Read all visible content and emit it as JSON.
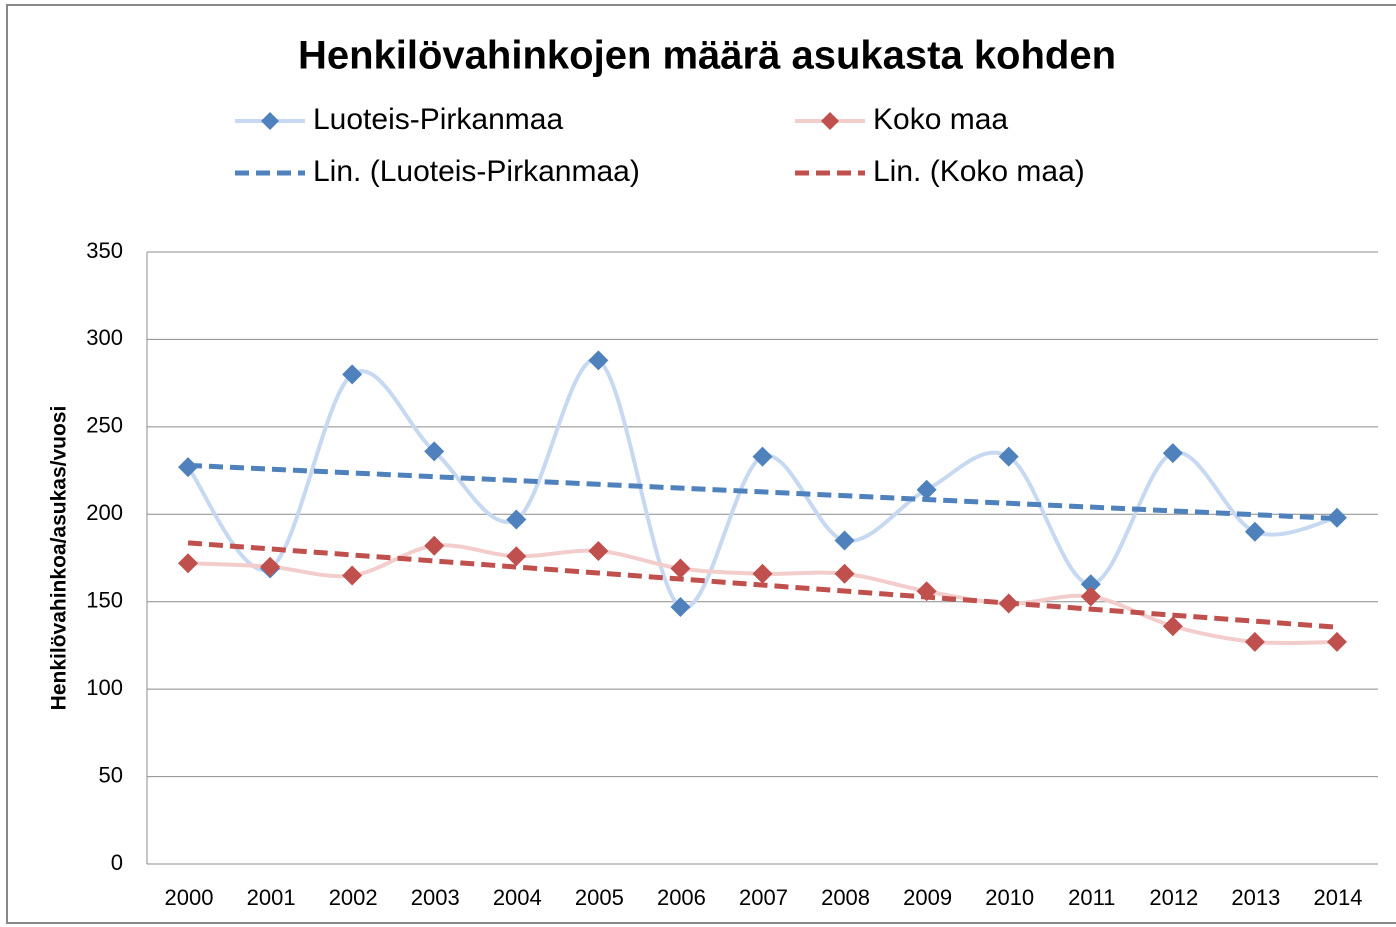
{
  "chart_data": {
    "type": "line",
    "title": "Henkilövahinkojen määrä asukasta kohden",
    "y_label": "Henkilövahinkoa/asukas/vuosi",
    "categories": [
      "2000",
      "2001",
      "2002",
      "2003",
      "2004",
      "2005",
      "2006",
      "2007",
      "2008",
      "2009",
      "2010",
      "2011",
      "2012",
      "2013",
      "2014"
    ],
    "series": [
      {
        "name": "Luoteis-Pirkanmaa",
        "color": "#4f81bd",
        "line_color": "#c6d9f1",
        "smooth": true,
        "values": [
          227,
          169,
          280,
          236,
          197,
          288,
          147,
          233,
          185,
          214,
          233,
          160,
          235,
          190,
          198
        ],
        "trendline": {
          "type": "linear",
          "name": "Lin. (Luoteis-Pirkanmaa)",
          "color": "#4f81bd"
        }
      },
      {
        "name": "Koko maa",
        "color": "#c0504d",
        "line_color": "#f2cdcc",
        "smooth": true,
        "values": [
          172,
          170,
          165,
          182,
          176,
          179,
          169,
          166,
          166,
          156,
          149,
          153,
          136,
          127,
          127
        ],
        "trendline": {
          "type": "linear",
          "name": "Lin. (Koko maa)",
          "color": "#c0504d"
        }
      }
    ],
    "ylim": [
      0,
      350
    ],
    "yticks": [
      0,
      50,
      100,
      150,
      200,
      250,
      300,
      350
    ],
    "grid": true,
    "legend": "top"
  }
}
